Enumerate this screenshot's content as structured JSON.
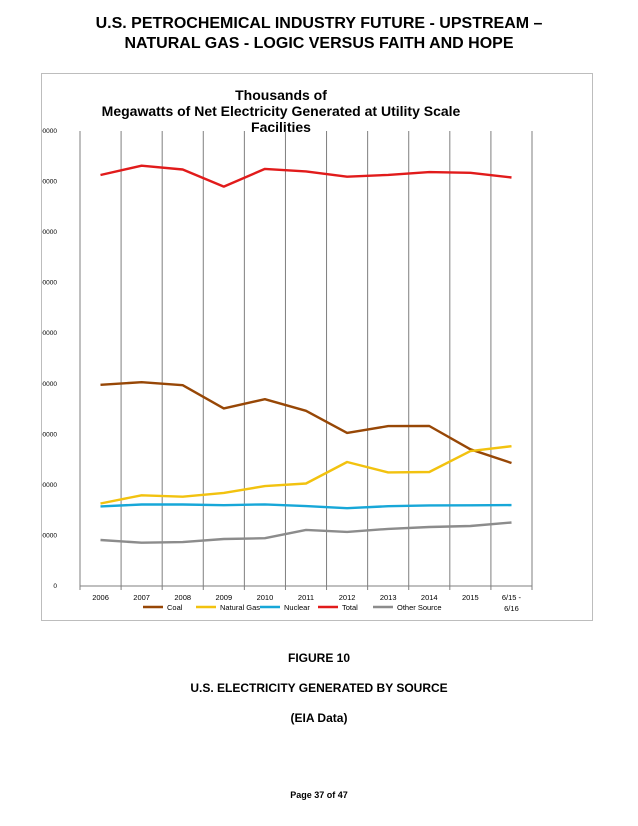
{
  "header": {
    "title_line1": "U.S. PETROCHEMICAL INDUSTRY FUTURE - UPSTREAM –",
    "title_line2": "NATURAL GAS - LOGIC VERSUS FAITH AND HOPE"
  },
  "figure": {
    "number": "FIGURE 10",
    "caption": "U.S. ELECTRICITY GENERATED BY SOURCE",
    "source": "(EIA Data)"
  },
  "footer": {
    "page": "Page 37 of 47"
  },
  "chart_data": {
    "type": "line",
    "title_lines": [
      "Thousands of",
      "Megawatts of Net Electricity Generated at Utility Scale",
      "Facilities"
    ],
    "categories": [
      "2006",
      "2007",
      "2008",
      "2009",
      "2010",
      "2011",
      "2012",
      "2013",
      "2014",
      "2015",
      "6/15 - 6/16"
    ],
    "category_label_lines": [
      [
        "2006"
      ],
      [
        "2007"
      ],
      [
        "2008"
      ],
      [
        "2009"
      ],
      [
        "2010"
      ],
      [
        "2011"
      ],
      [
        "2012"
      ],
      [
        "2013"
      ],
      [
        "2014"
      ],
      [
        "2015"
      ],
      [
        "6/15 -",
        "6/16"
      ]
    ],
    "ylim": [
      0,
      4500000
    ],
    "yticks": [
      0,
      500000,
      1000000,
      1500000,
      2000000,
      2500000,
      3000000,
      3500000,
      4000000,
      4500000
    ],
    "ytick_labels": [
      "0",
      "500000",
      "1000000",
      "1500000",
      "2000000",
      "2500000",
      "3000000",
      "3500000",
      "4000000",
      "4500000"
    ],
    "grid": "vertical",
    "legend_position": "bottom",
    "series": [
      {
        "name": "Coal",
        "color": "#974706",
        "values": [
          1990000,
          2016000,
          1986000,
          1756000,
          1847000,
          1733000,
          1514000,
          1581000,
          1582000,
          1352000,
          1216000
        ]
      },
      {
        "name": "Natural Gas",
        "color": "#f2c20f",
        "values": [
          816000,
          897000,
          883000,
          921000,
          988000,
          1014000,
          1226000,
          1124000,
          1127000,
          1334000,
          1383000
        ]
      },
      {
        "name": "Nuclear",
        "color": "#17a7d8",
        "values": [
          787000,
          806000,
          806000,
          799000,
          807000,
          790000,
          769000,
          789000,
          797000,
          798000,
          800000
        ]
      },
      {
        "name": "Total",
        "color": "#e11b1b",
        "values": [
          4065000,
          4157000,
          4119000,
          3950000,
          4125000,
          4100000,
          4048000,
          4066000,
          4094000,
          4087000,
          4040000
        ]
      },
      {
        "name": "Other Source",
        "color": "#8c8c8c",
        "values": [
          455000,
          428000,
          434000,
          465000,
          473000,
          555000,
          535000,
          565000,
          584000,
          593000,
          628000
        ]
      }
    ]
  }
}
